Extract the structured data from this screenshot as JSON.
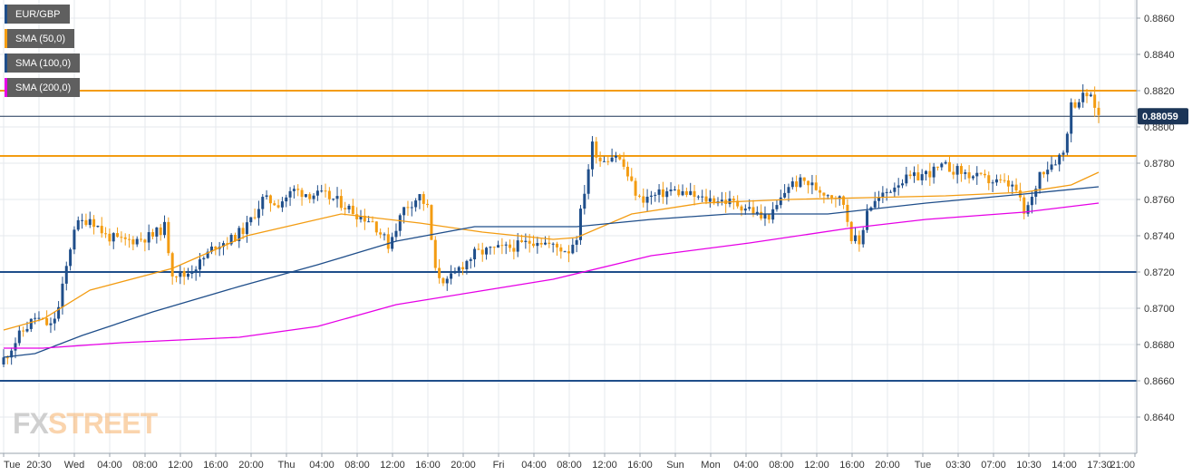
{
  "legend": [
    {
      "label": "EUR/GBP",
      "color": "#1f4e8a"
    },
    {
      "label": "SMA (50,0)",
      "color": "#f39c12"
    },
    {
      "label": "SMA (100,0)",
      "color": "#1f4e8a"
    },
    {
      "label": "SMA (200,0)",
      "color": "#e600e6"
    }
  ],
  "watermark": {
    "part1": "FX",
    "part2": "STREET"
  },
  "colors": {
    "bull": "#1f4e8a",
    "bear": "#f39c12",
    "sma50": "#f39c12",
    "sma100": "#1f4e8a",
    "sma200": "#e600e6",
    "grid": "#e6e9ee",
    "axis": "#9aa3ad",
    "price_tag_bg": "#1c3557"
  },
  "chart_data": {
    "type": "candlestick",
    "symbol": "EUR/GBP",
    "ylim": [
      0.862,
      0.887
    ],
    "y_ticks": [
      "0.8640",
      "0.8660",
      "0.8680",
      "0.8700",
      "0.8720",
      "0.8740",
      "0.8760",
      "0.8780",
      "0.8800",
      "0.8820",
      "0.8840",
      "0.8860"
    ],
    "x_ticks": [
      "Tue",
      "20:30",
      "Wed",
      "04:00",
      "08:00",
      "12:00",
      "16:00",
      "20:00",
      "Thu",
      "04:00",
      "08:00",
      "12:00",
      "16:00",
      "20:00",
      "Fri",
      "04:00",
      "08:00",
      "12:00",
      "16:00",
      "Sun",
      "Mon",
      "04:00",
      "08:00",
      "12:00",
      "16:00",
      "20:00",
      "Tue",
      "03:30",
      "07:00",
      "10:30",
      "14:00",
      "17:30",
      "21:00"
    ],
    "last_price": "0.88059",
    "horizontal_levels": [
      {
        "value": 0.882,
        "color": "#f39c12"
      },
      {
        "value": 0.8784,
        "color": "#f39c12"
      },
      {
        "value": 0.872,
        "color": "#1f4e8a"
      },
      {
        "value": 0.866,
        "color": "#1f4e8a"
      }
    ],
    "series": [
      {
        "name": "EUR/GBP",
        "kind": "candles",
        "close_anchors": [
          [
            0,
            0.8672
          ],
          [
            4,
            0.8685
          ],
          [
            8,
            0.8695
          ],
          [
            12,
            0.869
          ],
          [
            14,
            0.87
          ],
          [
            18,
            0.8745
          ],
          [
            22,
            0.875
          ],
          [
            26,
            0.874
          ],
          [
            30,
            0.8737
          ],
          [
            34,
            0.8738
          ],
          [
            38,
            0.874
          ],
          [
            41,
            0.8745
          ],
          [
            43,
            0.872
          ],
          [
            46,
            0.8718
          ],
          [
            50,
            0.8725
          ],
          [
            54,
            0.8735
          ],
          [
            58,
            0.8738
          ],
          [
            62,
            0.8745
          ],
          [
            66,
            0.876
          ],
          [
            70,
            0.8758
          ],
          [
            74,
            0.8765
          ],
          [
            78,
            0.8763
          ],
          [
            82,
            0.8762
          ],
          [
            86,
            0.8758
          ],
          [
            90,
            0.8752
          ],
          [
            94,
            0.8748
          ],
          [
            98,
            0.8735
          ],
          [
            102,
            0.8755
          ],
          [
            106,
            0.8762
          ],
          [
            108,
            0.8755
          ],
          [
            110,
            0.872
          ],
          [
            113,
            0.8714
          ],
          [
            116,
            0.8722
          ],
          [
            120,
            0.873
          ],
          [
            124,
            0.8732
          ],
          [
            128,
            0.8733
          ],
          [
            132,
            0.8735
          ],
          [
            136,
            0.8738
          ],
          [
            140,
            0.8734
          ],
          [
            144,
            0.8732
          ],
          [
            146,
            0.874
          ],
          [
            148,
            0.8765
          ],
          [
            150,
            0.879
          ],
          [
            152,
            0.8782
          ],
          [
            156,
            0.8785
          ],
          [
            158,
            0.8778
          ],
          [
            160,
            0.8768
          ],
          [
            162,
            0.876
          ],
          [
            166,
            0.8762
          ],
          [
            170,
            0.8765
          ],
          [
            174,
            0.8763
          ],
          [
            178,
            0.876
          ],
          [
            182,
            0.876
          ],
          [
            186,
            0.8758
          ],
          [
            190,
            0.8755
          ],
          [
            193,
            0.875
          ],
          [
            196,
            0.8752
          ],
          [
            200,
            0.8768
          ],
          [
            204,
            0.877
          ],
          [
            208,
            0.8765
          ],
          [
            212,
            0.8762
          ],
          [
            214,
            0.8758
          ],
          [
            216,
            0.874
          ],
          [
            218,
            0.8735
          ],
          [
            220,
            0.8755
          ],
          [
            224,
            0.8762
          ],
          [
            228,
            0.877
          ],
          [
            232,
            0.8772
          ],
          [
            236,
            0.8775
          ],
          [
            240,
            0.8778
          ],
          [
            244,
            0.8775
          ],
          [
            248,
            0.8772
          ],
          [
            252,
            0.877
          ],
          [
            256,
            0.8768
          ],
          [
            258,
            0.8765
          ],
          [
            260,
            0.8752
          ],
          [
            262,
            0.876
          ],
          [
            264,
            0.8775
          ],
          [
            267,
            0.878
          ],
          [
            270,
            0.8786
          ],
          [
            272,
            0.8812
          ],
          [
            274,
            0.8815
          ],
          [
            276,
            0.8818
          ],
          [
            278,
            0.8812
          ],
          [
            279,
            0.8806
          ]
        ]
      },
      {
        "name": "SMA (50,0)",
        "kind": "line",
        "points": [
          [
            0,
            0.8688
          ],
          [
            10,
            0.8694
          ],
          [
            22,
            0.871
          ],
          [
            43,
            0.8722
          ],
          [
            62,
            0.874
          ],
          [
            86,
            0.8752
          ],
          [
            106,
            0.8747
          ],
          [
            122,
            0.8742
          ],
          [
            140,
            0.8738
          ],
          [
            146,
            0.8739
          ],
          [
            160,
            0.8752
          ],
          [
            178,
            0.8758
          ],
          [
            200,
            0.876
          ],
          [
            220,
            0.8761
          ],
          [
            240,
            0.8762
          ],
          [
            260,
            0.8764
          ],
          [
            272,
            0.8768
          ],
          [
            279,
            0.8775
          ]
        ]
      },
      {
        "name": "SMA (100,0)",
        "kind": "line",
        "points": [
          [
            0,
            0.8673
          ],
          [
            8,
            0.8675
          ],
          [
            20,
            0.8685
          ],
          [
            38,
            0.8698
          ],
          [
            60,
            0.8712
          ],
          [
            80,
            0.8724
          ],
          [
            100,
            0.8737
          ],
          [
            120,
            0.8745
          ],
          [
            146,
            0.8745
          ],
          [
            165,
            0.8749
          ],
          [
            185,
            0.8752
          ],
          [
            210,
            0.8752
          ],
          [
            235,
            0.8758
          ],
          [
            260,
            0.8763
          ],
          [
            279,
            0.8767
          ]
        ]
      },
      {
        "name": "SMA (200,0)",
        "kind": "line",
        "points": [
          [
            0,
            0.8678
          ],
          [
            10,
            0.8678
          ],
          [
            30,
            0.8681
          ],
          [
            60,
            0.8684
          ],
          [
            80,
            0.869
          ],
          [
            100,
            0.8702
          ],
          [
            120,
            0.8709
          ],
          [
            140,
            0.8716
          ],
          [
            165,
            0.8729
          ],
          [
            190,
            0.8736
          ],
          [
            215,
            0.8744
          ],
          [
            235,
            0.8749
          ],
          [
            260,
            0.8753
          ],
          [
            279,
            0.8758
          ]
        ]
      }
    ]
  }
}
